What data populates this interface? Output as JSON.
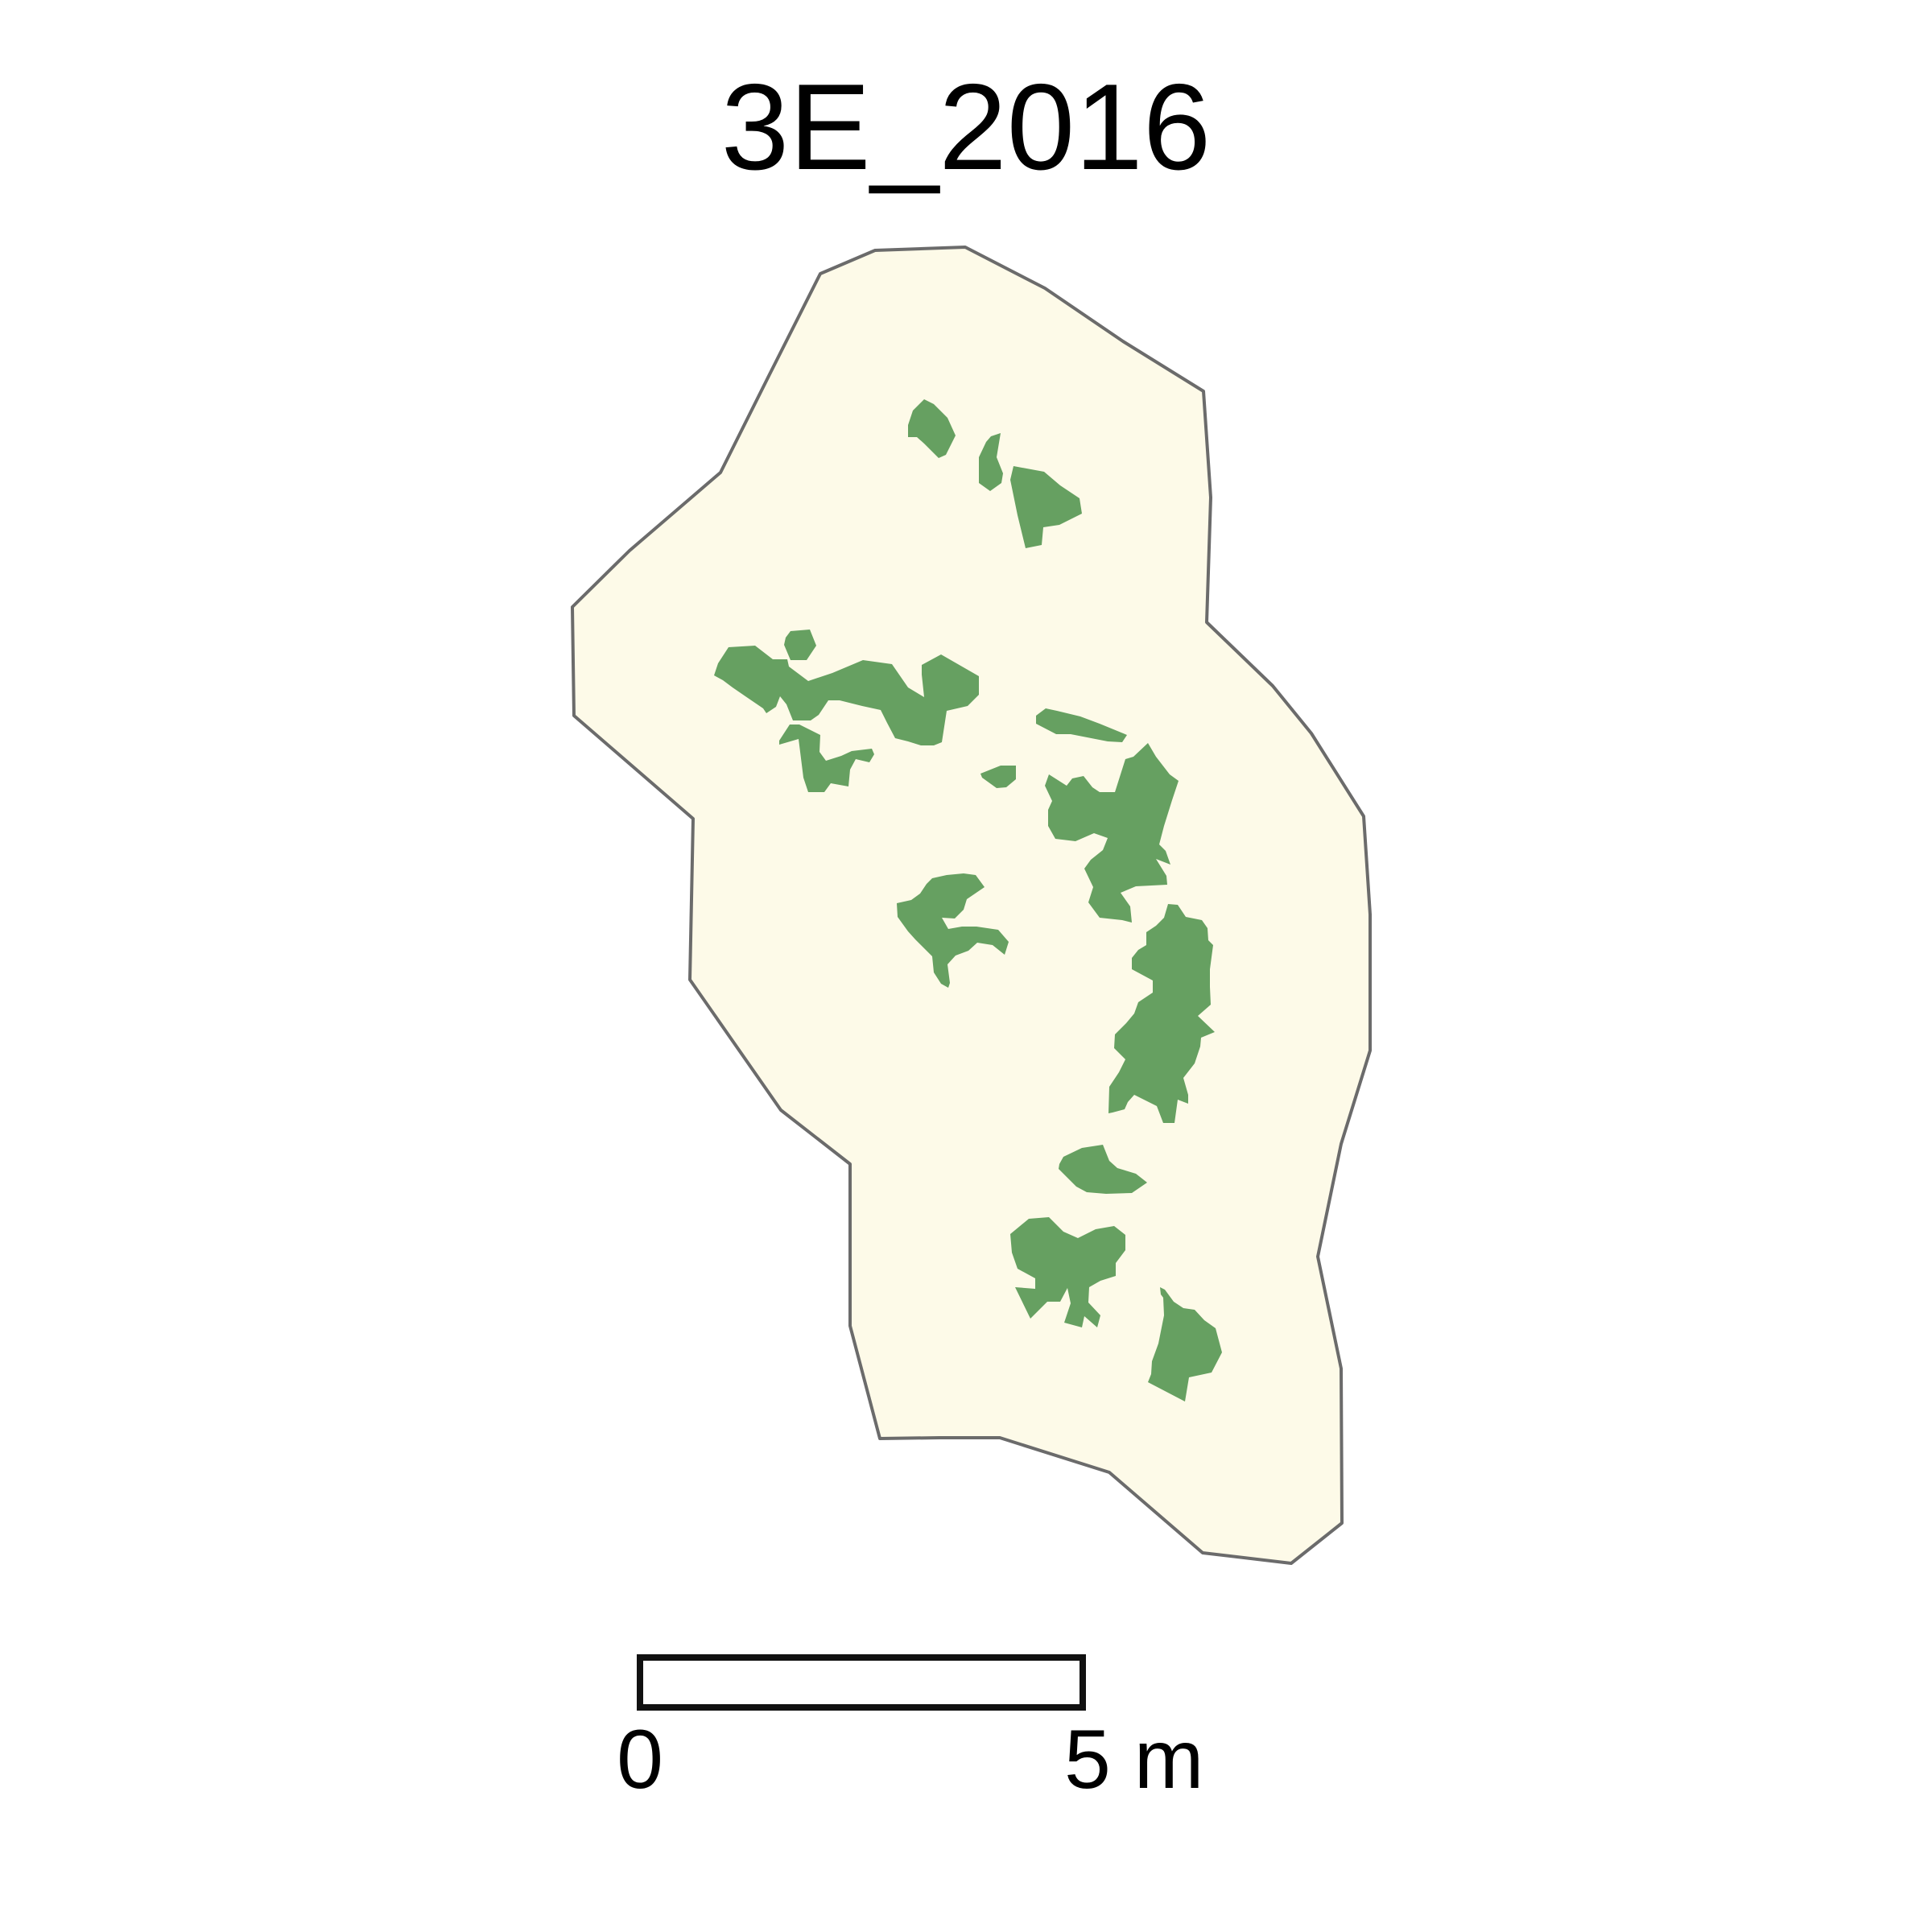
{
  "map": {
    "title": "3E_2016",
    "colors": {
      "boundary_fill": "#fdfae8",
      "boundary_stroke": "#6b6b6b",
      "vegetation_fill": "#66a061",
      "scalebar_stroke": "#111111",
      "scalebar_fill": "#ffffff"
    },
    "scale_bar": {
      "label_start": "0",
      "label_end": "5 m"
    }
  }
}
